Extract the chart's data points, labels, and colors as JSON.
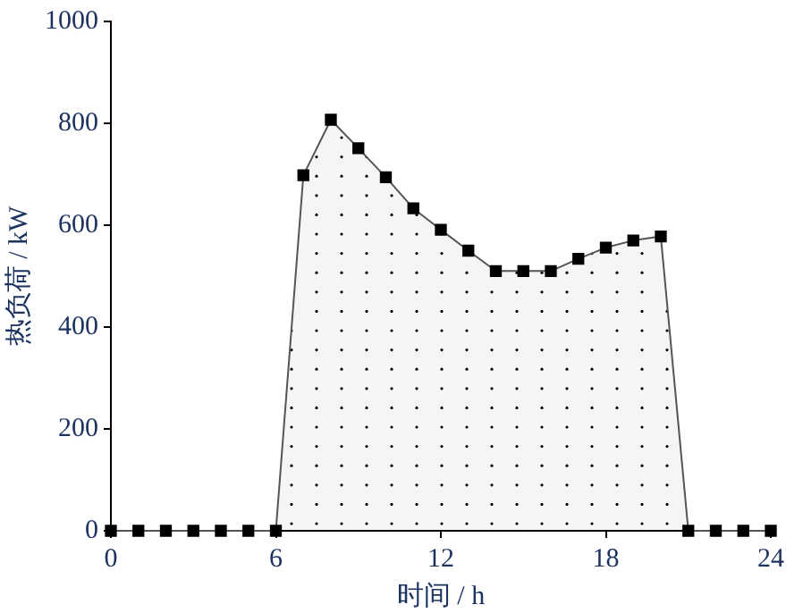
{
  "chart_data": {
    "type": "area",
    "xlabel": "时间 / h",
    "ylabel": "热负荷 / kW",
    "x": [
      0,
      1,
      2,
      3,
      4,
      5,
      6,
      7,
      8,
      9,
      10,
      11,
      12,
      13,
      14,
      15,
      16,
      17,
      18,
      19,
      20,
      21,
      22,
      23,
      24
    ],
    "series": [
      {
        "color": "#000000",
        "values": [
          0,
          0,
          0,
          0,
          0,
          0,
          0,
          698,
          807,
          751,
          694,
          633,
          591,
          550,
          510,
          510,
          510,
          534,
          556,
          570,
          578,
          0,
          0,
          0,
          0
        ]
      }
    ],
    "xlim": [
      0,
      24
    ],
    "xticks": [
      0,
      6,
      12,
      18,
      24
    ],
    "ylim": [
      0,
      1000
    ],
    "yticks": [
      0,
      200,
      400,
      600,
      800,
      1000
    ],
    "grid": false,
    "legend": false,
    "marker": "square",
    "line_style": "solid"
  }
}
